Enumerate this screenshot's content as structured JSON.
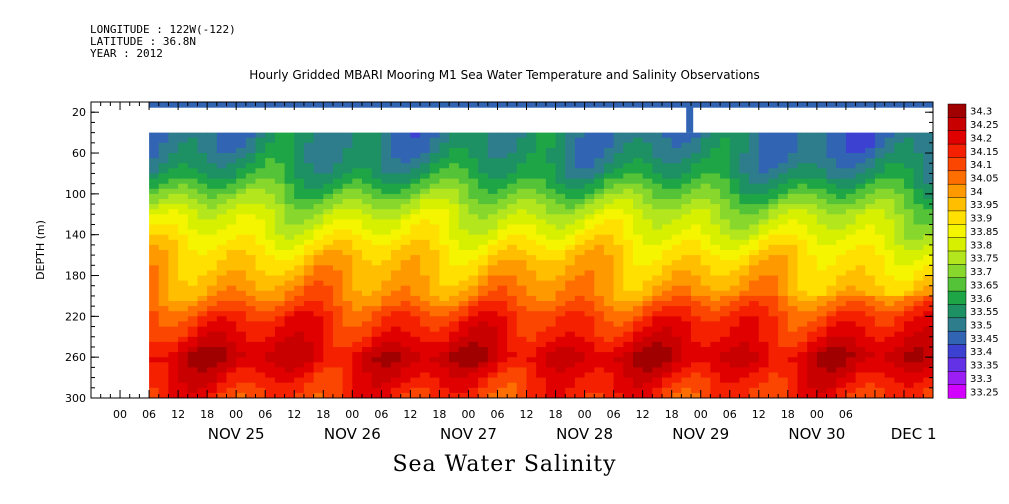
{
  "header": {
    "longitude": "LONGITUDE : 122W(-122)",
    "latitude": "LATITUDE : 36.8N",
    "year": "YEAR : 2012"
  },
  "title": "Hourly Gridded MBARI Mooring M1 Sea Water Temperature and Salinity Observations",
  "variable_title": "Sea Water Salinity",
  "chart_data": {
    "type": "heatmap",
    "ylabel": "DEPTH (m)",
    "y_ticks": [
      20,
      60,
      100,
      140,
      180,
      220,
      260,
      300
    ],
    "ylim": [
      300,
      0
    ],
    "x_hour_ticks": [
      "00",
      "06",
      "12",
      "18",
      "00",
      "06",
      "12",
      "18",
      "00",
      "06",
      "12",
      "18",
      "00",
      "06",
      "12",
      "18",
      "00",
      "06",
      "12",
      "18",
      "00",
      "06",
      "12",
      "18",
      "00",
      "06"
    ],
    "x_date_labels": [
      "NOV 25",
      "NOV 26",
      "NOV 27",
      "NOV 28",
      "NOV 29",
      "NOV 30",
      "DEC  1"
    ],
    "x_range_hours": [
      "2012-11-24 00:00",
      "2012-12-01 06:00"
    ],
    "colorbar_levels": [
      "34.3",
      "34.25",
      "34.2",
      "34.15",
      "34.1",
      "34.05",
      "34",
      "33.95",
      "33.9",
      "33.85",
      "33.8",
      "33.75",
      "33.7",
      "33.65",
      "33.6",
      "33.55",
      "33.5",
      "33.45",
      "33.4",
      "33.35",
      "33.3",
      "33.25"
    ],
    "colorbar_colors": [
      "#a00000",
      "#c80000",
      "#e00000",
      "#f52000",
      "#fa4600",
      "#ff6e00",
      "#ff9900",
      "#ffbe00",
      "#ffe000",
      "#f5f500",
      "#d7f000",
      "#b4e61e",
      "#87d72d",
      "#55c337",
      "#1ea546",
      "#1e9164",
      "#2d7d8c",
      "#3264b4",
      "#3c41d2",
      "#6432e6",
      "#9b1ef5",
      "#d200ff"
    ],
    "depth_profile_mean_salinity": [
      {
        "depth": 10,
        "value": 33.4
      },
      {
        "depth": 40,
        "value": 33.48
      },
      {
        "depth": 60,
        "value": 33.5
      },
      {
        "depth": 80,
        "value": 33.55
      },
      {
        "depth": 100,
        "value": 33.65
      },
      {
        "depth": 120,
        "value": 33.75
      },
      {
        "depth": 140,
        "value": 33.82
      },
      {
        "depth": 160,
        "value": 33.9
      },
      {
        "depth": 180,
        "value": 33.95
      },
      {
        "depth": 200,
        "value": 34.0
      },
      {
        "depth": 220,
        "value": 34.1
      },
      {
        "depth": 240,
        "value": 34.15
      },
      {
        "depth": 260,
        "value": 34.22
      },
      {
        "depth": 280,
        "value": 34.15
      },
      {
        "depth": 300,
        "value": 34.1
      }
    ],
    "grid": false
  }
}
